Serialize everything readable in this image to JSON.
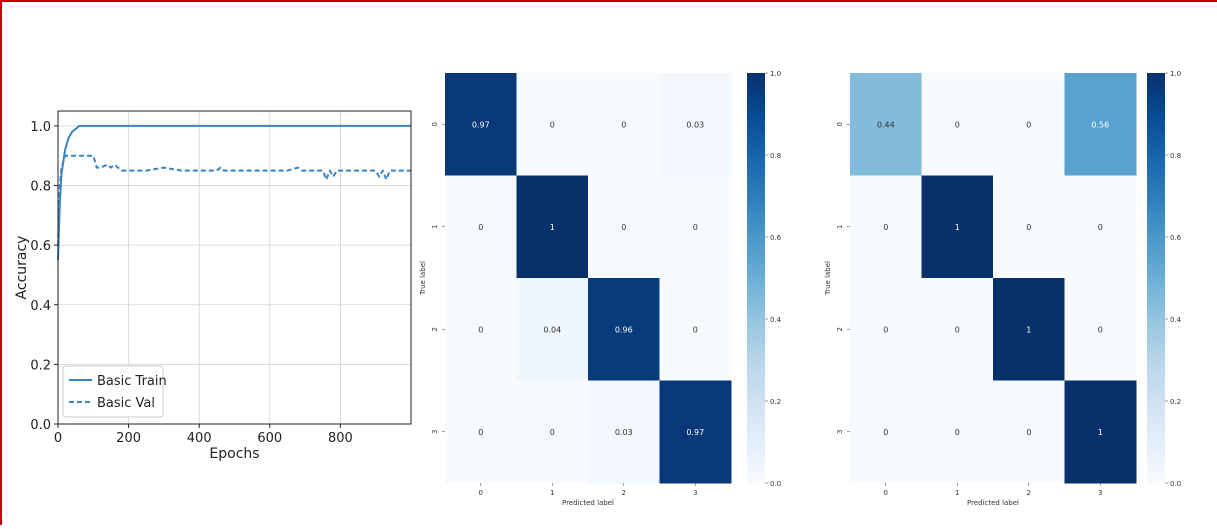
{
  "chart_data": [
    {
      "type": "line",
      "title": "",
      "xlabel": "Epochs",
      "ylabel": "Accuracy",
      "xlim": [
        0,
        1000
      ],
      "ylim": [
        0,
        1.05
      ],
      "grid": true,
      "legend_position": "lower-left",
      "xticks": [
        0,
        200,
        400,
        600,
        800
      ],
      "xtick_labels": [
        "0",
        "200",
        "400",
        "600",
        "800"
      ],
      "yticks": [
        0.0,
        0.2,
        0.4,
        0.6,
        0.8,
        1.0
      ],
      "ytick_labels": [
        "0.0",
        "0.2",
        "0.4",
        "0.6",
        "0.8",
        "1.0"
      ],
      "series": [
        {
          "name": "Basic Train",
          "style": "solid",
          "color": "#3a84bf",
          "x": [
            0,
            5,
            10,
            20,
            30,
            40,
            50,
            60,
            70,
            80,
            1000
          ],
          "y": [
            0.55,
            0.74,
            0.84,
            0.92,
            0.96,
            0.98,
            0.99,
            1.0,
            1.0,
            1.0,
            1.0
          ]
        },
        {
          "name": "Basic Val",
          "style": "dashed",
          "color": "#3a84bf",
          "x": [
            0,
            5,
            10,
            20,
            30,
            100,
            110,
            120,
            140,
            150,
            160,
            170,
            180,
            200,
            250,
            300,
            350,
            400,
            450,
            460,
            470,
            480,
            500,
            550,
            600,
            650,
            680,
            690,
            700,
            750,
            760,
            770,
            780,
            790,
            800,
            850,
            900,
            910,
            920,
            930,
            940,
            950,
            1000
          ],
          "y": [
            0.6,
            0.8,
            0.86,
            0.9,
            0.9,
            0.9,
            0.86,
            0.86,
            0.87,
            0.86,
            0.87,
            0.86,
            0.85,
            0.85,
            0.85,
            0.86,
            0.85,
            0.85,
            0.85,
            0.86,
            0.85,
            0.85,
            0.85,
            0.85,
            0.85,
            0.85,
            0.86,
            0.85,
            0.85,
            0.85,
            0.82,
            0.85,
            0.83,
            0.85,
            0.85,
            0.85,
            0.85,
            0.83,
            0.85,
            0.82,
            0.85,
            0.85,
            0.85
          ]
        }
      ]
    },
    {
      "type": "heatmap",
      "title": "",
      "xlabel": "Predicted label",
      "ylabel": "True label",
      "x_categories": [
        "0",
        "1",
        "2",
        "3"
      ],
      "y_categories": [
        "0",
        "1",
        "2",
        "3"
      ],
      "values": [
        [
          0.97,
          0,
          0,
          0.03
        ],
        [
          0,
          1,
          0,
          0
        ],
        [
          0,
          0.04,
          0.96,
          0
        ],
        [
          0,
          0,
          0.03,
          0.97
        ]
      ],
      "cell_labels": [
        [
          "0.97",
          "0",
          "0",
          "0.03"
        ],
        [
          "0",
          "1",
          "0",
          "0"
        ],
        [
          "0",
          "0.04",
          "0.96",
          "0"
        ],
        [
          "0",
          "0",
          "0.03",
          "0.97"
        ]
      ],
      "colorscale": "Blues",
      "colorbar_range": [
        0,
        1
      ],
      "colorbar_ticks": [
        "0.0",
        "0.2",
        "0.4",
        "0.6",
        "0.8",
        "1.0"
      ]
    },
    {
      "type": "heatmap",
      "title": "",
      "xlabel": "Predicted label",
      "ylabel": "True label",
      "x_categories": [
        "0",
        "1",
        "2",
        "3"
      ],
      "y_categories": [
        "0",
        "1",
        "2",
        "3"
      ],
      "values": [
        [
          0.44,
          0,
          0,
          0.56
        ],
        [
          0,
          1,
          0,
          0
        ],
        [
          0,
          0,
          1,
          0
        ],
        [
          0,
          0,
          0,
          1
        ]
      ],
      "cell_labels": [
        [
          "0.44",
          "0",
          "0",
          "0.56"
        ],
        [
          "0",
          "1",
          "0",
          "0"
        ],
        [
          "0",
          "0",
          "1",
          "0"
        ],
        [
          "0",
          "0",
          "0",
          "1"
        ]
      ],
      "colorscale": "Blues",
      "colorbar_range": [
        0,
        1
      ],
      "colorbar_ticks": [
        "0.0",
        "0.2",
        "0.4",
        "0.6",
        "0.8",
        "1.0"
      ]
    }
  ]
}
